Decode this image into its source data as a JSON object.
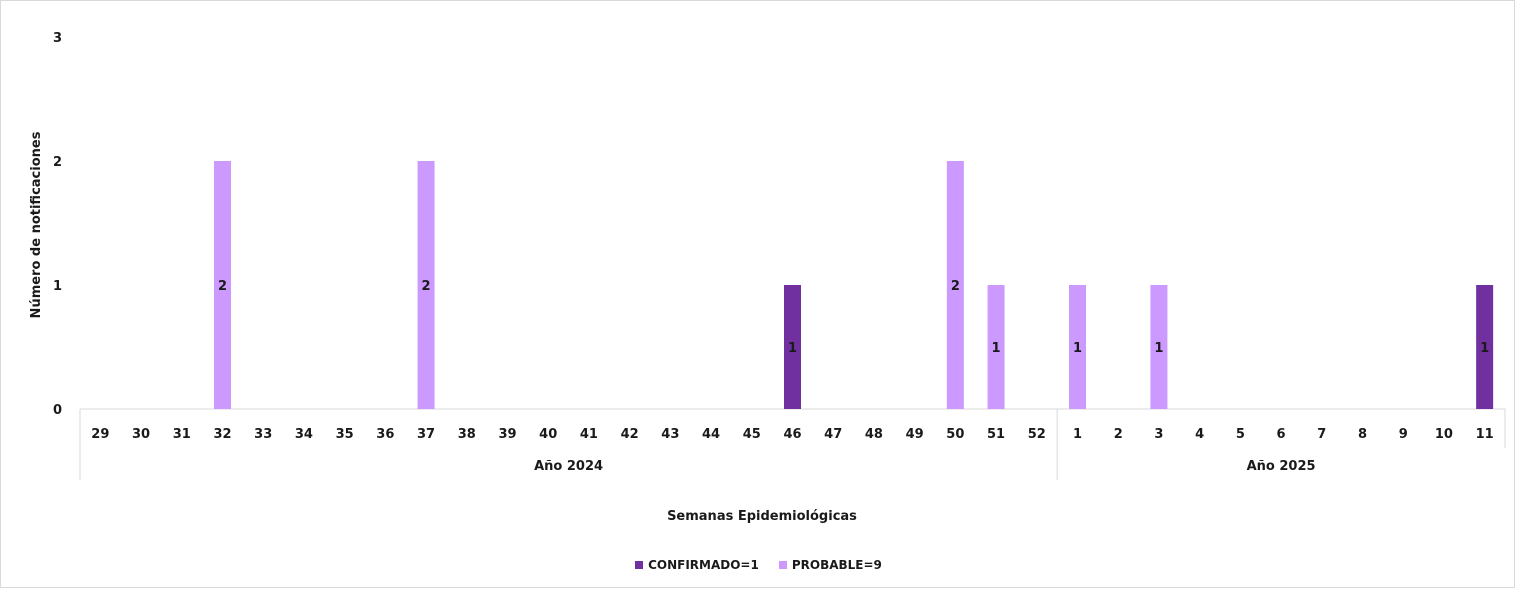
{
  "chart_data": {
    "type": "bar",
    "categories": [
      "29",
      "30",
      "31",
      "32",
      "33",
      "34",
      "35",
      "36",
      "37",
      "38",
      "39",
      "40",
      "41",
      "42",
      "43",
      "44",
      "45",
      "46",
      "47",
      "48",
      "49",
      "50",
      "51",
      "52",
      "1",
      "2",
      "3",
      "4",
      "5",
      "6",
      "7",
      "8",
      "9",
      "10",
      "11"
    ],
    "groups": [
      {
        "label": "Año 2024",
        "count": 24
      },
      {
        "label": "Año 2025",
        "count": 11
      }
    ],
    "series": [
      {
        "name": "CONFIRMADO=1",
        "color": "#7030a0",
        "values": [
          0,
          0,
          0,
          0,
          0,
          0,
          0,
          0,
          0,
          0,
          0,
          0,
          0,
          0,
          0,
          0,
          0,
          1,
          0,
          0,
          0,
          0,
          0,
          0,
          0,
          0,
          0,
          0,
          0,
          0,
          0,
          0,
          0,
          0,
          1
        ]
      },
      {
        "name": "PROBABLE=9",
        "color": "#cc99ff",
        "values": [
          0,
          0,
          0,
          2,
          0,
          0,
          0,
          0,
          2,
          0,
          0,
          0,
          0,
          0,
          0,
          0,
          0,
          0,
          0,
          0,
          0,
          2,
          1,
          0,
          1,
          0,
          1,
          0,
          0,
          0,
          0,
          0,
          0,
          0,
          0
        ]
      }
    ],
    "ylim": [
      0,
      3
    ],
    "yticks": [
      0,
      1,
      2,
      3
    ],
    "ylabel": "Número de notificaciones",
    "xlabel": "Semanas Epidemiológicas",
    "grid": false,
    "legend_position": "bottom"
  }
}
